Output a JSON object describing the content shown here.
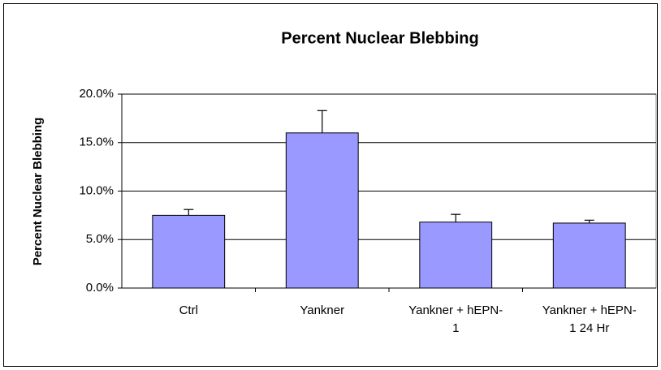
{
  "chart_data": {
    "type": "bar",
    "title": "Percent Nuclear Blebbing",
    "y_label": "Percent Nuclear Blebbing",
    "categories": [
      "Ctrl",
      "Yankner",
      "Yankner + hEPN-1",
      "Yankner + hEPN-1 24 Hr"
    ],
    "values": [
      7.5,
      16.0,
      6.8,
      6.7
    ],
    "errors": [
      0.6,
      2.3,
      0.8,
      0.3
    ],
    "color": "#9999ff",
    "ylim": [
      0,
      20
    ],
    "yticks": [
      {
        "value": 0,
        "label": "0.0%"
      },
      {
        "value": 5,
        "label": "5.0%"
      },
      {
        "value": 10,
        "label": "10.0%"
      },
      {
        "value": 15,
        "label": "15.0%"
      },
      {
        "value": 20,
        "label": "20.0%"
      }
    ],
    "grid": true
  }
}
